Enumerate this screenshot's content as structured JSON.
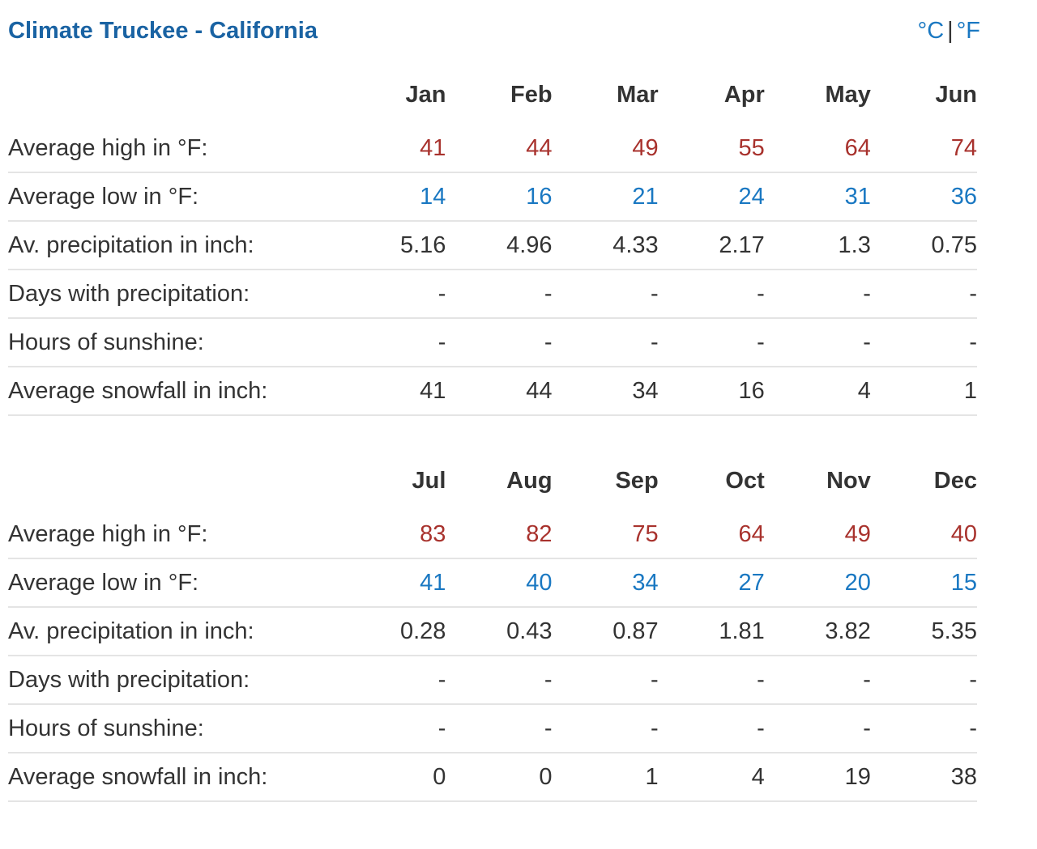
{
  "title": "Climate Truckee - California",
  "units": {
    "celsius": "°C",
    "separator": "|",
    "fahrenheit": "°F"
  },
  "row_labels": {
    "high": "Average high in °F:",
    "low": "Average low in °F:",
    "precip": "Av. precipitation in inch:",
    "days_precip": "Days with precipitation:",
    "sunshine": "Hours of sunshine:",
    "snowfall": "Average snowfall in inch:"
  },
  "colors": {
    "title": "#1a63a3",
    "high": "#a8322d",
    "low": "#1a78c2",
    "text": "#333333"
  },
  "tables": [
    {
      "months": [
        "Jan",
        "Feb",
        "Mar",
        "Apr",
        "May",
        "Jun"
      ],
      "high": [
        "41",
        "44",
        "49",
        "55",
        "64",
        "74"
      ],
      "low": [
        "14",
        "16",
        "21",
        "24",
        "31",
        "36"
      ],
      "precip": [
        "5.16",
        "4.96",
        "4.33",
        "2.17",
        "1.3",
        "0.75"
      ],
      "days_precip": [
        "-",
        "-",
        "-",
        "-",
        "-",
        "-"
      ],
      "sunshine": [
        "-",
        "-",
        "-",
        "-",
        "-",
        "-"
      ],
      "snowfall": [
        "41",
        "44",
        "34",
        "16",
        "4",
        "1"
      ]
    },
    {
      "months": [
        "Jul",
        "Aug",
        "Sep",
        "Oct",
        "Nov",
        "Dec"
      ],
      "high": [
        "83",
        "82",
        "75",
        "64",
        "49",
        "40"
      ],
      "low": [
        "41",
        "40",
        "34",
        "27",
        "20",
        "15"
      ],
      "precip": [
        "0.28",
        "0.43",
        "0.87",
        "1.81",
        "3.82",
        "5.35"
      ],
      "days_precip": [
        "-",
        "-",
        "-",
        "-",
        "-",
        "-"
      ],
      "sunshine": [
        "-",
        "-",
        "-",
        "-",
        "-",
        "-"
      ],
      "snowfall": [
        "0",
        "0",
        "1",
        "4",
        "19",
        "38"
      ]
    }
  ]
}
